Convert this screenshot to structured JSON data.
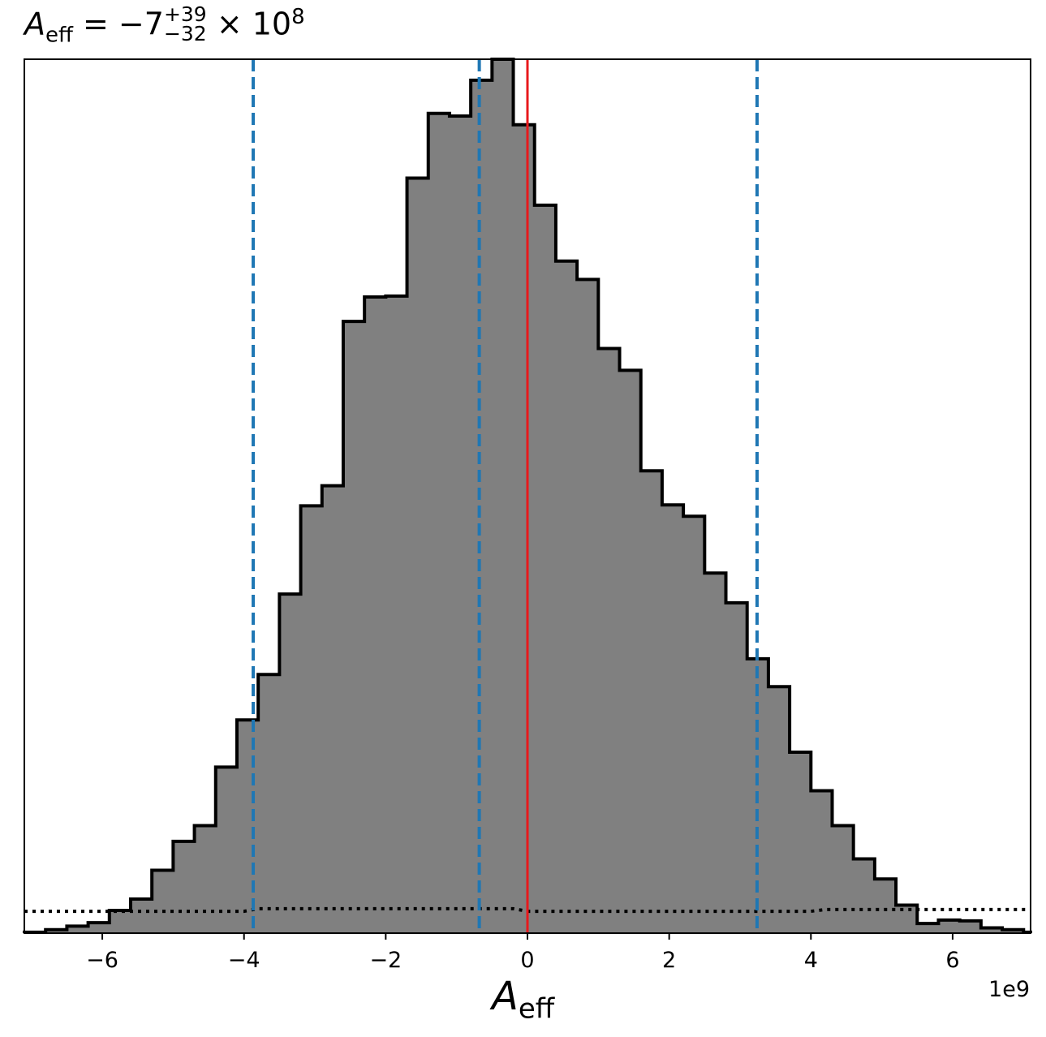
{
  "title": {
    "symbol": "A",
    "subscript": "eff",
    "equals": "= −7",
    "sup": "+39",
    "sub": "−32",
    "tail": "× 10",
    "power": "8"
  },
  "xlabel": {
    "symbol": "A",
    "subscript": "eff"
  },
  "offset_text": "1e9",
  "chart_data": {
    "type": "histogram",
    "x_scale": 1000000000.0,
    "xlim": [
      -7.1,
      7.1
    ],
    "xticks": [
      -6,
      -4,
      -2,
      0,
      2,
      4,
      6
    ],
    "xtick_labels": [
      "−6",
      "−4",
      "−2",
      "0",
      "2",
      "4",
      "6"
    ],
    "ylim": [
      0,
      1.0
    ],
    "y_ticks_visible": false,
    "bin_edges": [
      -7.1,
      -6.8,
      -6.5,
      -6.2,
      -5.9,
      -5.6,
      -5.3,
      -5.0,
      -4.7,
      -4.4,
      -4.1,
      -3.8,
      -3.5,
      -3.2,
      -2.9,
      -2.6,
      -2.3,
      -2.0,
      -1.7,
      -1.4,
      -1.1,
      -0.8,
      -0.5,
      -0.2,
      0.1,
      0.4,
      0.7,
      1.0,
      1.3,
      1.6,
      1.9,
      2.2,
      2.5,
      2.8,
      3.1,
      3.4,
      3.7,
      4.0,
      4.3,
      4.6,
      4.9,
      5.2,
      5.5,
      5.8,
      6.1,
      6.4,
      6.7,
      7.0,
      7.1
    ],
    "bin_heights": [
      0.001,
      0.004,
      0.008,
      0.012,
      0.026,
      0.039,
      0.072,
      0.105,
      0.123,
      0.19,
      0.244,
      0.296,
      0.388,
      0.489,
      0.512,
      0.7,
      0.728,
      0.729,
      0.864,
      0.938,
      0.935,
      0.976,
      1.0,
      0.925,
      0.833,
      0.769,
      0.748,
      0.669,
      0.644,
      0.529,
      0.49,
      0.477,
      0.412,
      0.378,
      0.314,
      0.282,
      0.207,
      0.163,
      0.123,
      0.085,
      0.062,
      0.032,
      0.011,
      0.015,
      0.014,
      0.006,
      0.004,
      0.001
    ],
    "fill_color": "#808080",
    "edge_color": "#000000",
    "prior_line": {
      "style": "dotted",
      "color": "#000000",
      "x": [
        -7.1,
        -4.0,
        -3.8,
        -0.2,
        0.0,
        4.0,
        4.2,
        7.1
      ],
      "y": [
        0.025,
        0.025,
        0.028,
        0.028,
        0.025,
        0.025,
        0.027,
        0.027
      ]
    },
    "vlines": [
      {
        "x": -3.87,
        "color": "#1f77b4",
        "style": "dashed"
      },
      {
        "x": -0.68,
        "color": "#1f77b4",
        "style": "dashed"
      },
      {
        "x": 3.24,
        "color": "#1f77b4",
        "style": "dashed"
      },
      {
        "x": 0.0,
        "color": "#e8191c",
        "style": "solid"
      }
    ]
  }
}
